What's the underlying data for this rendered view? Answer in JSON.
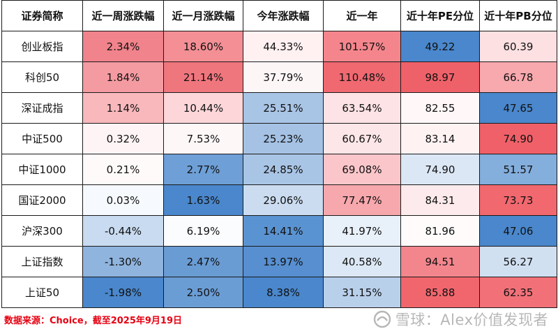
{
  "table": {
    "headers": [
      "证券简称",
      "近一周涨跌幅",
      "近一月涨跌幅",
      "今年涨跌幅",
      "近一年",
      "近十年PE分位",
      "近十年PB分位"
    ],
    "rows": [
      {
        "name": "创业板指",
        "cells": [
          {
            "v": "2.34%",
            "bg": "#f0838b"
          },
          {
            "v": "18.60%",
            "bg": "#f38f95"
          },
          {
            "v": "44.33%",
            "bg": "#fff1f2"
          },
          {
            "v": "101.57%",
            "bg": "#f5858c"
          },
          {
            "v": "49.22",
            "bg": "#4a87cc"
          },
          {
            "v": "60.39",
            "bg": "#fde0e2"
          }
        ]
      },
      {
        "name": "科创50",
        "cells": [
          {
            "v": "1.84%",
            "bg": "#f49ba1"
          },
          {
            "v": "21.14%",
            "bg": "#f0767e"
          },
          {
            "v": "37.79%",
            "bg": "#fdf6f7"
          },
          {
            "v": "110.48%",
            "bg": "#f06870"
          },
          {
            "v": "98.97",
            "bg": "#ef6169"
          },
          {
            "v": "66.78",
            "bg": "#f8a9ae"
          }
        ]
      },
      {
        "name": "深证成指",
        "cells": [
          {
            "v": "1.14%",
            "bg": "#f8b8bc"
          },
          {
            "v": "10.44%",
            "bg": "#fcd6d9"
          },
          {
            "v": "25.51%",
            "bg": "#a9c5e6"
          },
          {
            "v": "63.54%",
            "bg": "#fde3e5"
          },
          {
            "v": "82.55",
            "bg": "#fff7f8"
          },
          {
            "v": "47.65",
            "bg": "#4a87cc"
          }
        ]
      },
      {
        "name": "中证500",
        "cells": [
          {
            "v": "0.32%",
            "bg": "#fef4f5"
          },
          {
            "v": "7.53%",
            "bg": "#fef7f8"
          },
          {
            "v": "25.23%",
            "bg": "#a5c2e4"
          },
          {
            "v": "60.67%",
            "bg": "#fde6e8"
          },
          {
            "v": "83.14",
            "bg": "#fff2f3"
          },
          {
            "v": "74.90",
            "bg": "#f06068"
          }
        ]
      },
      {
        "name": "中证1000",
        "cells": [
          {
            "v": "0.21%",
            "bg": "#fffafa"
          },
          {
            "v": "2.77%",
            "bg": "#6e9fd6"
          },
          {
            "v": "24.85%",
            "bg": "#a9c5e6"
          },
          {
            "v": "69.08%",
            "bg": "#fbc6ca"
          },
          {
            "v": "74.90",
            "bg": "#dbe7f5"
          },
          {
            "v": "51.57",
            "bg": "#84aedc"
          }
        ]
      },
      {
        "name": "国证2000",
        "cells": [
          {
            "v": "0.03%",
            "bg": "#f6f9fd"
          },
          {
            "v": "1.63%",
            "bg": "#4a87cc"
          },
          {
            "v": "29.06%",
            "bg": "#cbdcf0"
          },
          {
            "v": "77.47%",
            "bg": "#f7a8ad"
          },
          {
            "v": "84.31",
            "bg": "#fdeaec"
          },
          {
            "v": "73.73",
            "bg": "#f1686f"
          }
        ]
      },
      {
        "name": "沪深300",
        "cells": [
          {
            "v": "-0.44%",
            "bg": "#c9dbf0"
          },
          {
            "v": "6.19%",
            "bg": "#fbfcfe"
          },
          {
            "v": "14.41%",
            "bg": "#5a93d2"
          },
          {
            "v": "41.97%",
            "bg": "#e8f0f9"
          },
          {
            "v": "81.96",
            "bg": "#fffbfb"
          },
          {
            "v": "47.06",
            "bg": "#4a87cc"
          }
        ]
      },
      {
        "name": "上证指数",
        "cells": [
          {
            "v": "-1.30%",
            "bg": "#8fb4de"
          },
          {
            "v": "2.47%",
            "bg": "#6a9cd4"
          },
          {
            "v": "13.97%",
            "bg": "#578fd0"
          },
          {
            "v": "40.58%",
            "bg": "#dce8f5"
          },
          {
            "v": "94.51",
            "bg": "#f3868d"
          },
          {
            "v": "56.27",
            "bg": "#d1e0f1"
          }
        ]
      },
      {
        "name": "上证50",
        "cells": [
          {
            "v": "-1.98%",
            "bg": "#4a87cc"
          },
          {
            "v": "2.50%",
            "bg": "#6b9dd5"
          },
          {
            "v": "8.38%",
            "bg": "#4a87cc"
          },
          {
            "v": "31.15%",
            "bg": "#b9d0eb"
          },
          {
            "v": "85.88",
            "bg": "#f1666d"
          },
          {
            "v": "62.35",
            "bg": "#f27179"
          }
        ]
      }
    ]
  },
  "footer": {
    "source": "数据来源：Choice，截至2025年9月19日"
  },
  "watermark": {
    "text": "雪球：Alex价值发现者",
    "icon": "snowball-logo",
    "color": "#b7b7b7"
  }
}
